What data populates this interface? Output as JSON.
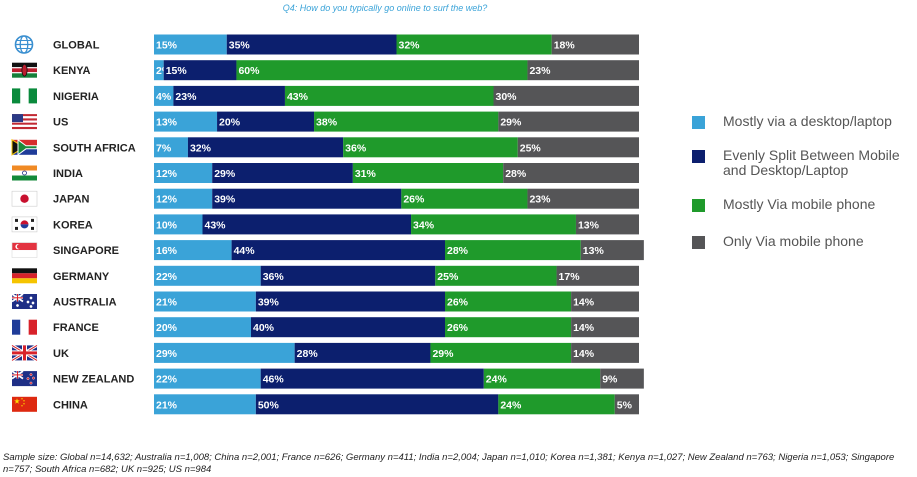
{
  "chart_data": {
    "type": "bar",
    "orientation": "horizontal",
    "stacked": true,
    "title": "Q4: How do you typically go online to surf the web?",
    "categories": [
      "GLOBAL",
      "KENYA",
      "NIGERIA",
      "US",
      "SOUTH AFRICA",
      "INDIA",
      "JAPAN",
      "KOREA",
      "SINGAPORE",
      "GERMANY",
      "AUSTRALIA",
      "FRANCE",
      "UK",
      "NEW ZEALAND",
      "CHINA"
    ],
    "series": [
      {
        "name": "Mostly via a desktop/laptop",
        "color": "#3aa3d8",
        "values": [
          15,
          2,
          4,
          13,
          7,
          12,
          12,
          10,
          16,
          22,
          21,
          20,
          29,
          22,
          21
        ]
      },
      {
        "name": "Evenly Split Between Mobile and Desktop/Laptop",
        "color": "#0c1f6e",
        "values": [
          35,
          15,
          23,
          20,
          32,
          29,
          39,
          43,
          44,
          36,
          39,
          40,
          28,
          46,
          50
        ]
      },
      {
        "name": "Mostly Via mobile phone",
        "color": "#1f9a2b",
        "values": [
          32,
          60,
          43,
          38,
          36,
          31,
          26,
          34,
          28,
          25,
          26,
          26,
          29,
          24,
          24
        ]
      },
      {
        "name": "Only Via mobile phone",
        "color": "#555557",
        "values": [
          18,
          23,
          30,
          29,
          25,
          28,
          23,
          13,
          13,
          17,
          14,
          14,
          14,
          9,
          5
        ]
      }
    ],
    "value_labels": [
      [
        "15%",
        "35%",
        "32%",
        "18%"
      ],
      [
        "2%",
        "15%",
        "60%",
        "23%"
      ],
      [
        "4%",
        "23%",
        "43%",
        "30%"
      ],
      [
        "13%",
        "20%",
        "38%",
        "29%"
      ],
      [
        "7%",
        "32%",
        "36%",
        "25%"
      ],
      [
        "12%",
        "29%",
        "31%",
        "28%"
      ],
      [
        "12%",
        "39%",
        "26%",
        "23%"
      ],
      [
        "10%",
        "43%",
        "34%",
        "13%"
      ],
      [
        "16%",
        "44%",
        "28%",
        "13%"
      ],
      [
        "22%",
        "36%",
        "25%",
        "17%"
      ],
      [
        "21%",
        "39%",
        "26%",
        "14%"
      ],
      [
        "20%",
        "40%",
        "26%",
        "14%"
      ],
      [
        "29%",
        "28%",
        "29%",
        "14%"
      ],
      [
        "22%",
        "46%",
        "24%",
        "9%"
      ],
      [
        "21%",
        "50%",
        "24%",
        "5%"
      ]
    ],
    "legend_position": "right",
    "grid": false
  },
  "flag_icons": [
    "globe-icon",
    "kenya-flag-icon",
    "nigeria-flag-icon",
    "us-flag-icon",
    "south-africa-flag-icon",
    "india-flag-icon",
    "japan-flag-icon",
    "korea-flag-icon",
    "singapore-flag-icon",
    "germany-flag-icon",
    "australia-flag-icon",
    "france-flag-icon",
    "uk-flag-icon",
    "new-zealand-flag-icon",
    "china-flag-icon"
  ],
  "footnote": "Sample size: Global n=14,632; Australia n=1,008; China n=2,001; France n=626; Germany n=411; India n=2,004; Japan n=1,010; Korea n=1,381; Kenya n=1,027; New Zealand n=763; Nigeria n=1,053; Singapore n=757;  South Africa n=682; UK n=925; US n=984"
}
